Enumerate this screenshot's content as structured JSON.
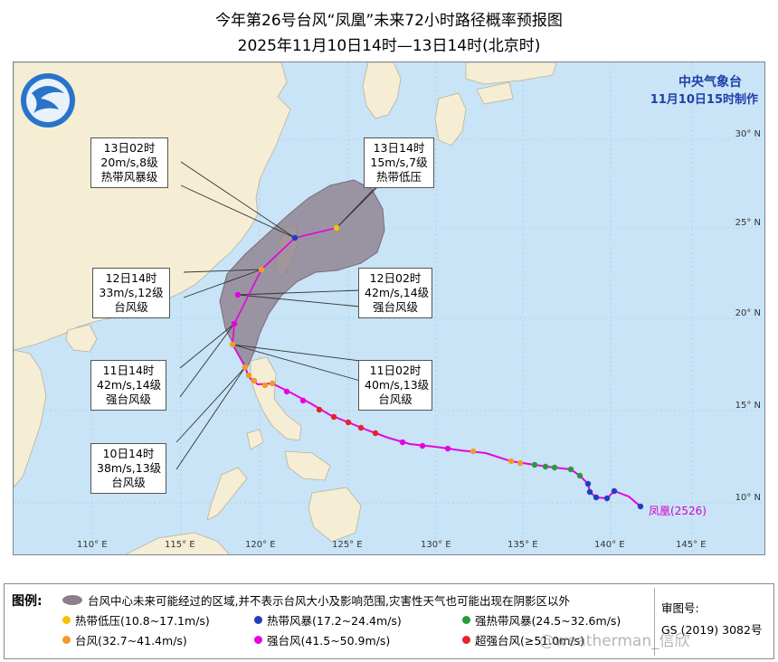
{
  "title": {
    "line1": "今年第26号台风“凤凰”未来72小时路径概率预报图",
    "line2": "2025年11月10日14时—13日14时(北京时)"
  },
  "agency": {
    "name": "中央气象台",
    "issued": "11月10日15时制作"
  },
  "map": {
    "lon_ticks": [
      "110° E",
      "115° E",
      "120° E",
      "125° E",
      "130° E",
      "135° E",
      "140° E",
      "145° E"
    ],
    "lat_ticks": [
      "10° N",
      "15° N",
      "20° N",
      "25° N",
      "30° N"
    ],
    "colors": {
      "sea": "#c8e4f6",
      "land": "#f6eed4",
      "track": "#e800e0",
      "cone": "#8e7e8d"
    }
  },
  "storm": {
    "name": "凤凰",
    "code": "(2526)"
  },
  "callouts": [
    {
      "id": "13-02",
      "time": "13日02时",
      "wind": "20m/s,8级",
      "level": "热带风暴级"
    },
    {
      "id": "13-14",
      "time": "13日14时",
      "wind": "15m/s,7级",
      "level": "热带低压"
    },
    {
      "id": "12-14",
      "time": "12日14时",
      "wind": "33m/s,12级",
      "level": "台风级"
    },
    {
      "id": "12-02",
      "time": "12日02时",
      "wind": "42m/s,14级",
      "level": "强台风级"
    },
    {
      "id": "11-14",
      "time": "11日14时",
      "wind": "42m/s,14级",
      "level": "强台风级"
    },
    {
      "id": "11-02",
      "time": "11日02时",
      "wind": "40m/s,13级",
      "level": "台风级"
    },
    {
      "id": "10-14",
      "time": "10日14时",
      "wind": "38m/s,13级",
      "level": "台风级"
    }
  ],
  "legend": {
    "heading": "图例:",
    "area_desc": "台风中心未来可能经过的区域,并不表示台风大小及影响范围,灾害性天气也可能出现在阴影区以外",
    "items": [
      {
        "label": "热带低压(10.8~17.1m/s)",
        "color": "#f2c200"
      },
      {
        "label": "热带风暴(17.2~24.4m/s)",
        "color": "#1f3fbf"
      },
      {
        "label": "强热带风暴(24.5~32.6m/s)",
        "color": "#2a9a3a"
      },
      {
        "label": "台风(32.7~41.4m/s)",
        "color": "#f59a2a"
      },
      {
        "label": "强台风(41.5~50.9m/s)",
        "color": "#e800e0"
      },
      {
        "label": "超强台风(≥51.0m/s)",
        "color": "#e8222a"
      }
    ],
    "review_label": "审图号:",
    "review_number": "GS (2019) 3082号"
  },
  "watermark": "@weatherman_信欣"
}
